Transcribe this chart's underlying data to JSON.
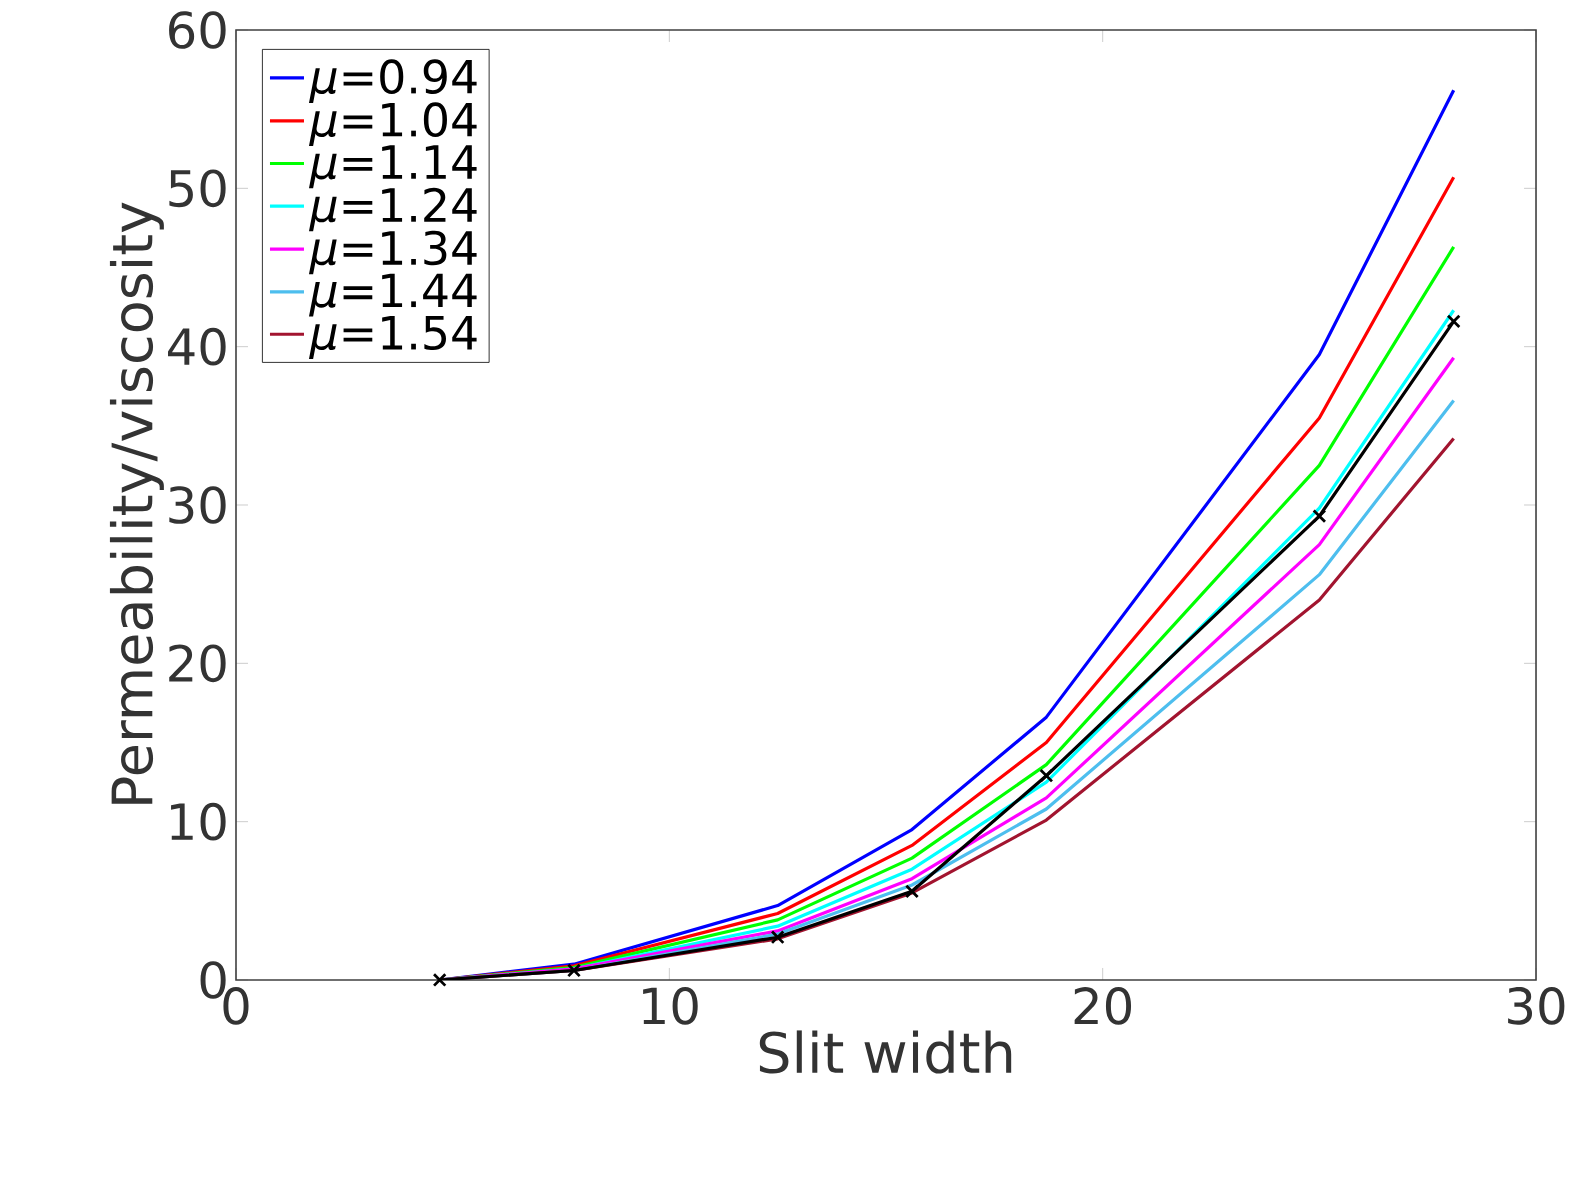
{
  "chart_data": {
    "type": "line",
    "xlabel": "Slit width",
    "ylabel": "Permeability/viscosity",
    "x": [
      4.7,
      7.8,
      12.5,
      15.6,
      18.7,
      25,
      28.1
    ],
    "xlim": [
      0,
      30
    ],
    "xticks": [
      0,
      10,
      20,
      30
    ],
    "ylim": [
      0,
      60
    ],
    "yticks": [
      0,
      10,
      20,
      30,
      40,
      50,
      60
    ],
    "legend": "top left",
    "marker": "none",
    "line_style": "solid",
    "grid": false,
    "series": [
      {
        "name": "*μ*=0.94",
        "color": "#0000ff",
        "values": [
          0,
          1.0,
          4.7,
          9.5,
          16.6,
          39.5,
          56.2
        ]
      },
      {
        "name": "*μ*=1.04",
        "color": "#ff0000",
        "values": [
          0,
          0.9,
          4.2,
          8.5,
          15.0,
          35.5,
          50.7
        ]
      },
      {
        "name": "*μ*=1.14",
        "color": "#00ff00",
        "values": [
          0,
          0.8,
          3.8,
          7.7,
          13.6,
          32.5,
          46.3
        ]
      },
      {
        "name": "*μ*=1.24",
        "color": "#00ffff",
        "values": [
          0,
          0.7,
          3.4,
          7.0,
          12.5,
          29.8,
          42.3
        ]
      },
      {
        "name": "*μ*=1.34",
        "color": "#ff00ff",
        "values": [
          0,
          0.7,
          3.1,
          6.4,
          11.5,
          27.5,
          39.3
        ]
      },
      {
        "name": "*μ*=1.44",
        "color": "#4dbeee",
        "values": [
          0,
          0.6,
          2.9,
          6.0,
          10.8,
          25.6,
          36.6
        ]
      },
      {
        "name": "*μ*=1.54",
        "color": "#a2142f",
        "values": [
          0,
          0.6,
          2.6,
          5.5,
          10.1,
          24.0,
          34.2
        ]
      },
      {
        "color": "#000000",
        "marker": "cross",
        "values": [
          0,
          0.6,
          2.7,
          5.6,
          12.9,
          29.3,
          41.6
        ]
      }
    ]
  }
}
